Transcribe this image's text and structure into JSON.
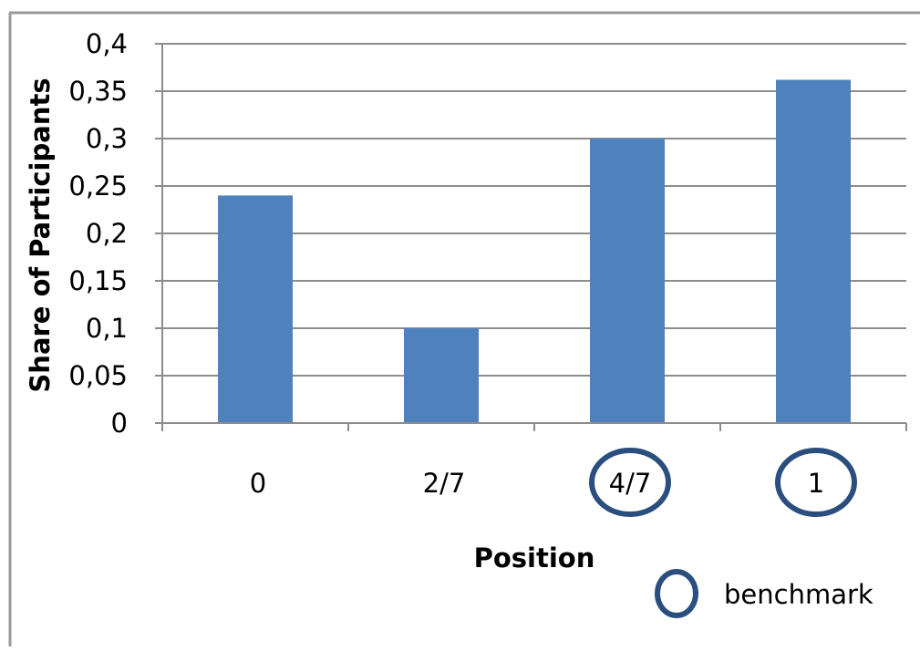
{
  "chart_data": {
    "type": "bar",
    "categories": [
      "0",
      "2/7",
      "4/7",
      "1"
    ],
    "values": [
      0.24,
      0.1,
      0.3,
      0.362
    ],
    "xlabel": "Position",
    "ylabel": "Share of Participants",
    "ylim": [
      0,
      0.4
    ],
    "yticks": [
      "0",
      "0,05",
      "0,1",
      "0,15",
      "0,2",
      "0,25",
      "0,3",
      "0,35",
      "0,4"
    ],
    "grid": true,
    "bar_color": "#4F81BD",
    "highlighted_categories": [
      "4/7",
      "1"
    ],
    "highlight_color": "#2A4E7E",
    "legend": {
      "label": "benchmark",
      "placement": "bottom-right"
    }
  }
}
